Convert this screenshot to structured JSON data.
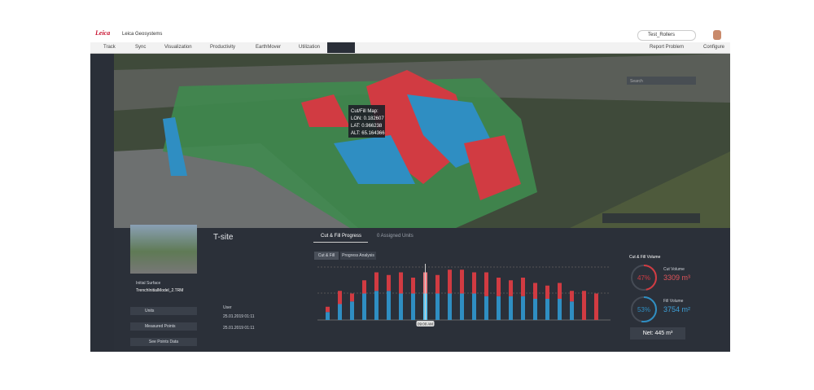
{
  "header": {
    "brand": "Leica",
    "company": "Leica Geosystems",
    "search": "Test_Rollers"
  },
  "nav": {
    "items": [
      "Track",
      "Sync",
      "Visualization",
      "Productivity",
      "EarthMover",
      "Utilization"
    ],
    "right": [
      "Report Problem",
      "Configure"
    ]
  },
  "map": {
    "search_placeholder": "Search",
    "tooltip": [
      "Cut/Fill Map:",
      "LON: 0.182607",
      "LAT: 0.966238",
      "ALT: 65.164366"
    ]
  },
  "site": {
    "name": "T-site",
    "initial_surface_label": "Initial Surface",
    "initial_surface": "TrenchInitialModel_2.TRM",
    "units": "Units",
    "measured_points": "Measured Points",
    "see_points": "See Points Data",
    "user": "User",
    "created": "25.01.2019 01:11",
    "modified": "25.01.2019 01:11"
  },
  "progress": {
    "tabs": [
      "Cut & Fill Progress",
      "0 Assigned Units"
    ],
    "subtabs": [
      "Cut & Fill",
      "Progress Analysis"
    ],
    "time_label": "09:00 AM",
    "ylim": [
      0,
      100
    ],
    "fill_values": [
      15,
      30,
      35,
      50,
      55,
      55,
      50,
      50,
      50,
      50,
      50,
      50,
      50,
      45,
      45,
      45,
      45,
      40,
      40,
      40,
      35,
      0,
      0
    ],
    "cut_values": [
      10,
      25,
      15,
      25,
      35,
      30,
      40,
      30,
      40,
      35,
      45,
      45,
      40,
      45,
      35,
      30,
      35,
      30,
      25,
      30,
      20,
      55,
      50
    ]
  },
  "volume": {
    "title": "Cut & Fill Volume",
    "cut_label": "Cut Volume",
    "cut_percent": {
      "value": 47,
      "label": "47%"
    },
    "cut_volume": "3309 m³",
    "fill_label": "Fill Volume",
    "fill_percent": {
      "value": 53,
      "label": "53%"
    },
    "fill_volume": "3754 m²",
    "net": "Net: 445 m³"
  }
}
